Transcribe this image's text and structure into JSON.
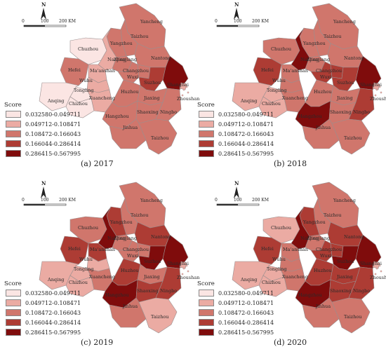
{
  "legend": {
    "title": "Score",
    "classes": [
      {
        "range": "0.032580-0.049711",
        "color": "#fbe5e3"
      },
      {
        "range": "0.049712-0.108471",
        "color": "#ebaba3"
      },
      {
        "range": "0.108472-0.166043",
        "color": "#d0766c"
      },
      {
        "range": "0.166044-0.286414",
        "color": "#ad3c34"
      },
      {
        "range": "0.286415-0.567995",
        "color": "#7f0c0c"
      }
    ]
  },
  "scale": {
    "zero": "0",
    "mid": "100",
    "end": "200 KM"
  },
  "north_label": "N",
  "panels": [
    {
      "caption": "(a) 2017"
    },
    {
      "caption": "(b) 2018"
    },
    {
      "caption": "(c) 2019"
    },
    {
      "caption": "(d) 2020"
    }
  ],
  "cities": [
    {
      "name": "Yancheng",
      "class": [
        2,
        2,
        2,
        2
      ]
    },
    {
      "name": "Taizhou",
      "class": [
        2,
        2,
        2,
        2
      ]
    },
    {
      "name": "Yangzhou",
      "class": [
        2,
        2,
        3,
        3
      ]
    },
    {
      "name": "Nantong",
      "class": [
        2,
        2,
        3,
        3
      ]
    },
    {
      "name": "Chuzhou",
      "class": [
        0,
        2,
        2,
        1
      ]
    },
    {
      "name": "Nanjing",
      "class": [
        1,
        4,
        4,
        4
      ]
    },
    {
      "name": "Zhenjiang",
      "class": [
        2,
        2,
        2,
        2
      ]
    },
    {
      "name": "Hefei",
      "class": [
        2,
        3,
        3,
        3
      ]
    },
    {
      "name": "Ma'anshan",
      "class": [
        1,
        2,
        3,
        2
      ]
    },
    {
      "name": "Changzhou",
      "class": [
        2,
        3,
        2,
        3
      ]
    },
    {
      "name": "Wuxi",
      "class": [
        2,
        3,
        2,
        3
      ]
    },
    {
      "name": "Suzhou",
      "class": [
        3,
        3,
        4,
        4
      ]
    },
    {
      "name": "Shanghai",
      "class": [
        4,
        4,
        4,
        4
      ]
    },
    {
      "name": "Wuhu",
      "class": [
        1,
        2,
        1,
        2
      ]
    },
    {
      "name": "Tongling",
      "class": [
        0,
        1,
        1,
        1
      ]
    },
    {
      "name": "Anqing",
      "class": [
        0,
        1,
        1,
        1
      ]
    },
    {
      "name": "Chizhou",
      "class": [
        0,
        1,
        1,
        1
      ]
    },
    {
      "name": "Xuancheng",
      "class": [
        1,
        2,
        2,
        2
      ]
    },
    {
      "name": "Huzhou",
      "class": [
        2,
        2,
        3,
        3
      ]
    },
    {
      "name": "Jiaxing",
      "class": [
        2,
        2,
        2,
        3
      ]
    },
    {
      "name": "Hangzhou",
      "class": [
        2,
        4,
        4,
        4
      ]
    },
    {
      "name": "Shaoxing",
      "class": [
        2,
        2,
        3,
        3
      ]
    },
    {
      "name": "Ningbo",
      "class": [
        2,
        3,
        3,
        3
      ]
    },
    {
      "name": "Zhoushan",
      "class": [
        1,
        1,
        1,
        1
      ]
    },
    {
      "name": "Jinhua",
      "class": [
        2,
        2,
        2,
        2
      ]
    },
    {
      "name": "Taizhou",
      "class": [
        2,
        2,
        1,
        2
      ]
    }
  ]
}
